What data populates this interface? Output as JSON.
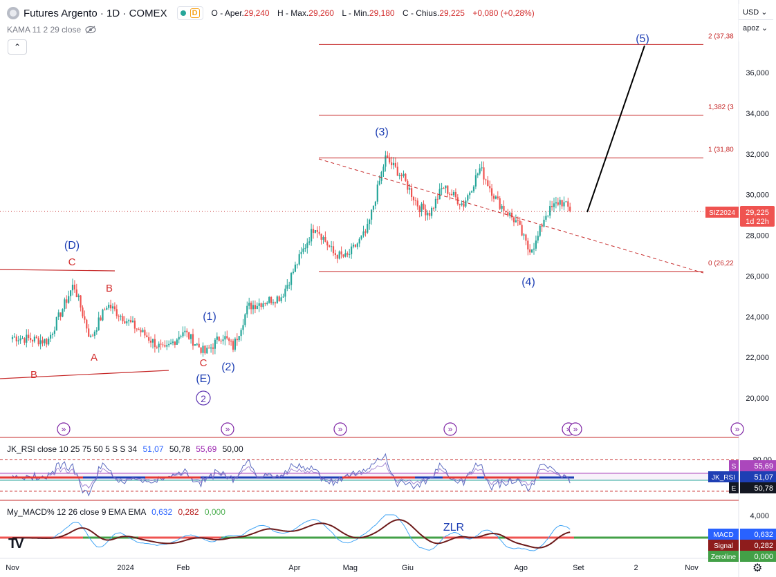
{
  "header": {
    "title": "Futures Argento · 1D · COMEX",
    "delay_badge": "D",
    "ohlc": [
      {
        "label": "O - Aper.",
        "value": "29,240"
      },
      {
        "label": "H - Max.",
        "value": "29,260"
      },
      {
        "label": "L - Min.",
        "value": "29,180"
      },
      {
        "label": "C - Chius.",
        "value": "29,225"
      },
      {
        "label": "",
        "value": "+0,080 (+0,28%)"
      }
    ]
  },
  "indicator_kama": "KAMA 11 2 29 close",
  "currency": "USD",
  "scale_mode": "apoz",
  "price_axis": {
    "ticks": [
      "36,000",
      "34,000",
      "32,000",
      "30,000",
      "28,000",
      "26,000",
      "24,000",
      "22,000",
      "20,000"
    ]
  },
  "time_axis": {
    "ticks": [
      "Nov",
      "2024",
      "Feb",
      "Apr",
      "Mag",
      "Giu",
      "Ago",
      "Set",
      "2",
      "Nov"
    ]
  },
  "price_tag": {
    "symbol": "SIZ2024",
    "price": "29,225",
    "countdown": "1d 22h"
  },
  "fib_labels": [
    "2 (37,38",
    "1,382 (3",
    "1 (31,80",
    "0 (26,22"
  ],
  "wave_labels": {
    "D": "(D)",
    "C1": "C",
    "B1": "B",
    "A1": "A",
    "B2": "B",
    "C2": "C",
    "E": "(E)",
    "w1": "(1)",
    "w2": "(2)",
    "circ2": "2",
    "w3": "(3)",
    "w4": "(4)",
    "w5": "(5)",
    "zlr": "ZLR"
  },
  "rsi": {
    "legend": "JK_RSI close 10 25 75 50 5 S S 34",
    "values": [
      "51,07",
      "50,78",
      "55,69",
      "50,00"
    ],
    "axis": [
      "80,00",
      "50,00"
    ],
    "tags": [
      {
        "k": "S",
        "v": "55,69"
      },
      {
        "k": "JK_RSI",
        "v": "51,07"
      },
      {
        "k": "E",
        "v": "50,78"
      }
    ]
  },
  "macd": {
    "legend": "My_MACD% 12 26 close 9 EMA EMA",
    "values": [
      "0,632",
      "0,282",
      "0,000"
    ],
    "axis": "4,000",
    "tags": [
      {
        "k": "MACD",
        "v": "0,632"
      },
      {
        "k": "Signal",
        "v": "0,282"
      },
      {
        "k": "Zeroline",
        "v": "0,000"
      }
    ]
  },
  "colors": {
    "up": "#26a69a",
    "down": "#ef5350",
    "wave": "#1e3fb4",
    "abc": "#d32f2f",
    "fib": "#c62828"
  },
  "chart_data": {
    "type": "candlestick",
    "title": "Futures Argento · 1D · COMEX",
    "ylim": [
      19000,
      38000
    ],
    "x_range": [
      "2023-11",
      "2024-11"
    ],
    "anchors": [
      {
        "date": "2023-11-01",
        "close": 23000
      },
      {
        "date": "2023-11-20",
        "close": 22800
      },
      {
        "date": "2023-12-04",
        "close": 25600
      },
      {
        "date": "2023-12-13",
        "close": 22900
      },
      {
        "date": "2023-12-22",
        "close": 24600
      },
      {
        "date": "2024-01-10",
        "close": 23200
      },
      {
        "date": "2024-01-22",
        "close": 22300
      },
      {
        "date": "2024-02-01",
        "close": 23300
      },
      {
        "date": "2024-02-13",
        "close": 22200
      },
      {
        "date": "2024-02-22",
        "close": 23100
      },
      {
        "date": "2024-02-28",
        "close": 22500
      },
      {
        "date": "2024-03-07",
        "close": 24500
      },
      {
        "date": "2024-03-25",
        "close": 25000
      },
      {
        "date": "2024-04-12",
        "close": 28500
      },
      {
        "date": "2024-04-22",
        "close": 27100
      },
      {
        "date": "2024-04-29",
        "close": 26900
      },
      {
        "date": "2024-05-10",
        "close": 28200
      },
      {
        "date": "2024-05-20",
        "close": 31800
      },
      {
        "date": "2024-05-29",
        "close": 30900
      },
      {
        "date": "2024-06-07",
        "close": 29400
      },
      {
        "date": "2024-06-13",
        "close": 29100
      },
      {
        "date": "2024-06-20",
        "close": 30400
      },
      {
        "date": "2024-07-01",
        "close": 29500
      },
      {
        "date": "2024-07-10",
        "close": 31300
      },
      {
        "date": "2024-07-19",
        "close": 29700
      },
      {
        "date": "2024-07-30",
        "close": 28600
      },
      {
        "date": "2024-08-05",
        "close": 27300
      },
      {
        "date": "2024-08-09",
        "close": 27600
      },
      {
        "date": "2024-08-14",
        "close": 29000
      },
      {
        "date": "2024-08-22",
        "close": 29700
      },
      {
        "date": "2024-08-28",
        "close": 29225
      }
    ],
    "fib_levels": [
      {
        "label": "2",
        "value": 37380
      },
      {
        "label": "1,382",
        "value": 33900
      },
      {
        "label": "1",
        "value": 31800
      },
      {
        "label": "0",
        "value": 26220
      }
    ],
    "last_price": 29225
  }
}
